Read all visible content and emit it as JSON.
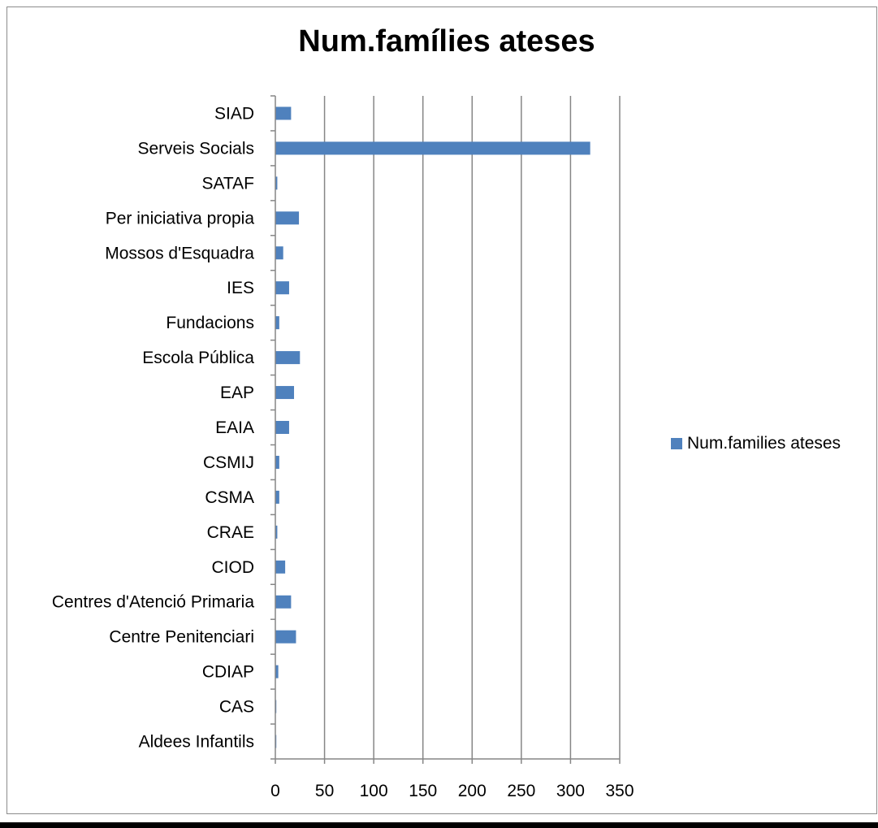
{
  "chart_data": {
    "type": "bar",
    "orientation": "horizontal",
    "title": "Num.famílies ateses",
    "xlabel": "",
    "ylabel": "",
    "xlim": [
      0,
      350
    ],
    "xticks": [
      0,
      50,
      100,
      150,
      200,
      250,
      300,
      350
    ],
    "grid": "vertical",
    "legend_position": "right",
    "categories": [
      "SIAD",
      "Serveis Socials",
      "SATAF",
      "Per iniciativa propia",
      "Mossos d'Esquadra",
      "IES",
      "Fundacions",
      "Escola Pública",
      "EAP",
      "EAIA",
      "CSMIJ",
      "CSMA",
      "CRAE",
      "CIOD",
      "Centres d'Atenció Primaria",
      "Centre Penitenciari",
      "CDIAP",
      "CAS",
      "Aldees Infantils"
    ],
    "series": [
      {
        "name": "Num.families ateses",
        "color": "#4f81bd",
        "values": [
          16,
          320,
          2,
          24,
          8,
          14,
          4,
          25,
          19,
          14,
          4,
          4,
          2,
          10,
          16,
          21,
          3,
          1,
          1
        ]
      }
    ]
  }
}
